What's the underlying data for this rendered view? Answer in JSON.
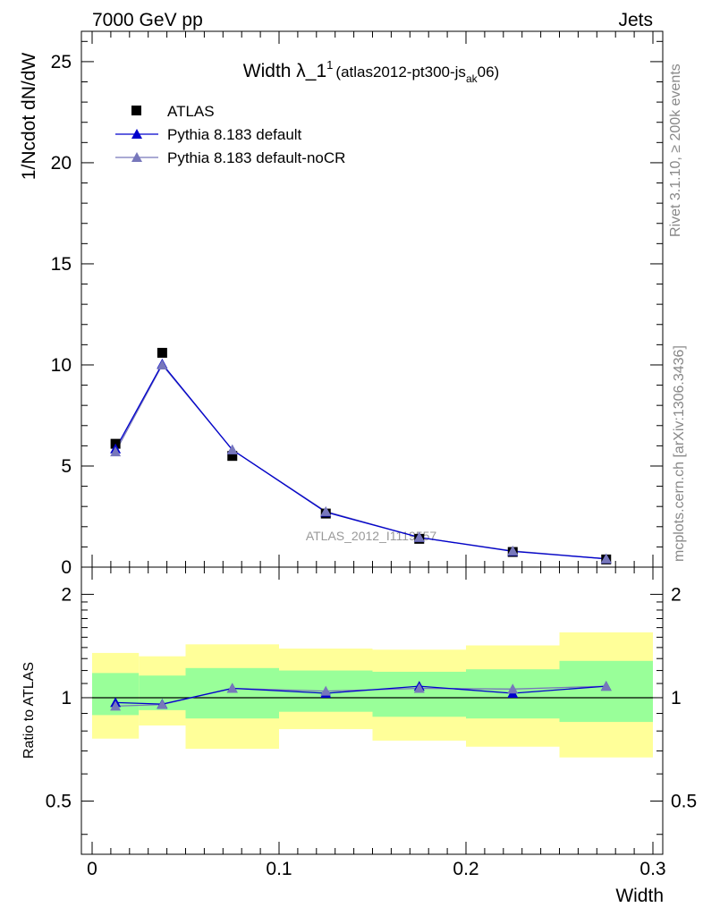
{
  "header": {
    "energy_label": "7000 GeV pp",
    "process_label": "Jets"
  },
  "side_labels": {
    "rivet": "Rivet 3.1.10, ≥ 200k events",
    "mcplots": "mcplots.cern.ch [arXiv:1306.3436]"
  },
  "watermark": "ATLAS_2012_I1119557",
  "colors": {
    "data": "#000000",
    "pythia_default": "#0000cc",
    "pythia_nocr": "#7777bb",
    "band_outer": "#ffff99",
    "band_inner": "#99ff99"
  },
  "chart_data": [
    {
      "type": "scatter",
      "title_main": "Width λ_1",
      "title_sup": "1",
      "title_paren_open": "(atlas2012-pt300-js",
      "title_sub": "ak",
      "title_paren_close": "06)",
      "ylabel": "1/Ncdot dN/dW",
      "xlabel": "",
      "xlim": [
        0,
        0.3
      ],
      "ylim": [
        0,
        26.5
      ],
      "yticks": [
        0,
        5,
        10,
        15,
        20,
        25
      ],
      "ytick_labels": [
        "0",
        "5",
        "10",
        "15",
        "20",
        "25"
      ],
      "bins": [
        [
          0.0,
          0.025
        ],
        [
          0.025,
          0.05
        ],
        [
          0.05,
          0.1
        ],
        [
          0.1,
          0.15
        ],
        [
          0.15,
          0.2
        ],
        [
          0.2,
          0.25
        ],
        [
          0.25,
          0.3
        ]
      ],
      "x": [
        0.0125,
        0.0375,
        0.075,
        0.125,
        0.175,
        0.225,
        0.275
      ],
      "series": [
        {
          "name": "ATLAS",
          "marker": "square",
          "values": [
            6.1,
            10.6,
            5.5,
            2.65,
            1.4,
            0.75,
            0.38
          ]
        },
        {
          "name": "Pythia 8.183 default",
          "marker": "triangle",
          "values": [
            5.85,
            10.05,
            5.8,
            2.72,
            1.47,
            0.78,
            0.41
          ]
        },
        {
          "name": "Pythia 8.183 default-noCR",
          "marker": "triangle",
          "values": [
            5.7,
            10.0,
            5.8,
            2.75,
            1.47,
            0.8,
            0.41
          ]
        }
      ]
    },
    {
      "type": "scatter",
      "ylabel": "Ratio to ATLAS",
      "xlabel": "Width",
      "xlim": [
        0,
        0.3
      ],
      "ylim": [
        0.35,
        2.4
      ],
      "log_y": true,
      "yticks": [
        0.5,
        1,
        2
      ],
      "ytick_labels": [
        "0.5",
        "1",
        "2"
      ],
      "xticks": [
        0,
        0.1,
        0.2,
        0.3
      ],
      "xtick_labels": [
        "0",
        "0.1",
        "0.2",
        "0.3"
      ],
      "x": [
        0.0125,
        0.0375,
        0.075,
        0.125,
        0.175,
        0.225,
        0.275
      ],
      "bins": [
        [
          0.0,
          0.025
        ],
        [
          0.025,
          0.05
        ],
        [
          0.05,
          0.1
        ],
        [
          0.1,
          0.15
        ],
        [
          0.15,
          0.2
        ],
        [
          0.2,
          0.25
        ],
        [
          0.25,
          0.3
        ]
      ],
      "band_outer": [
        [
          0.76,
          1.35
        ],
        [
          0.83,
          1.32
        ],
        [
          0.71,
          1.43
        ],
        [
          0.81,
          1.39
        ],
        [
          0.75,
          1.38
        ],
        [
          0.72,
          1.42
        ],
        [
          0.67,
          1.55
        ]
      ],
      "band_inner": [
        [
          0.89,
          1.18
        ],
        [
          0.92,
          1.16
        ],
        [
          0.87,
          1.22
        ],
        [
          0.91,
          1.2
        ],
        [
          0.88,
          1.19
        ],
        [
          0.87,
          1.21
        ],
        [
          0.85,
          1.28
        ]
      ],
      "series": [
        {
          "name": "Pythia 8.183 default",
          "values": [
            0.968,
            0.958,
            1.065,
            1.03,
            1.08,
            1.03,
            1.08
          ]
        },
        {
          "name": "Pythia 8.183 default-noCR",
          "values": [
            0.945,
            0.955,
            1.065,
            1.045,
            1.065,
            1.06,
            1.08
          ]
        }
      ]
    }
  ]
}
